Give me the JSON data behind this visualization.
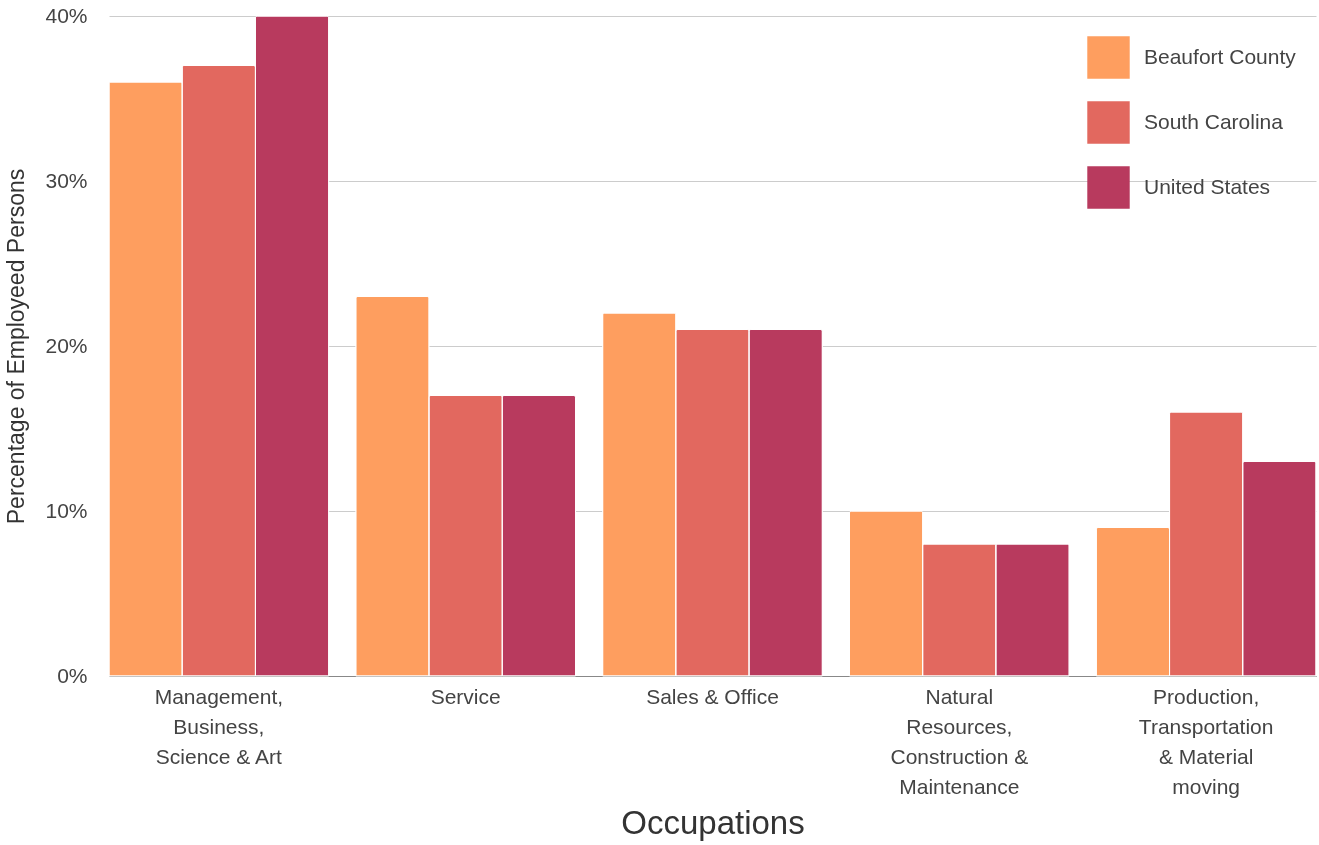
{
  "chart_data": {
    "type": "bar",
    "xlabel": "Occupations",
    "ylabel": "Percentage of Employeed Persons",
    "categories": [
      "Management, Business, Science & Art",
      "Service",
      "Sales & Office",
      "Natural Resources, Construction & Maintenance",
      "Production, Transportation & Material moving"
    ],
    "series": [
      {
        "name": "Beaufort County",
        "color": "#fe9e5f",
        "values": [
          36,
          23,
          22,
          10,
          9
        ]
      },
      {
        "name": "South Carolina",
        "color": "#e2685f",
        "values": [
          37,
          17,
          21,
          8,
          16
        ]
      },
      {
        "name": "United States",
        "color": "#b83a5e",
        "values": [
          40,
          17,
          21,
          8,
          13
        ]
      }
    ],
    "ylim": [
      0,
      40
    ],
    "yticks": [
      {
        "value": 0,
        "label": "0%"
      },
      {
        "value": 10,
        "label": "10%"
      },
      {
        "value": 20,
        "label": "20%"
      },
      {
        "value": 30,
        "label": "30%"
      },
      {
        "value": 40,
        "label": "40%"
      }
    ],
    "grid": "y",
    "legend": "top right"
  }
}
